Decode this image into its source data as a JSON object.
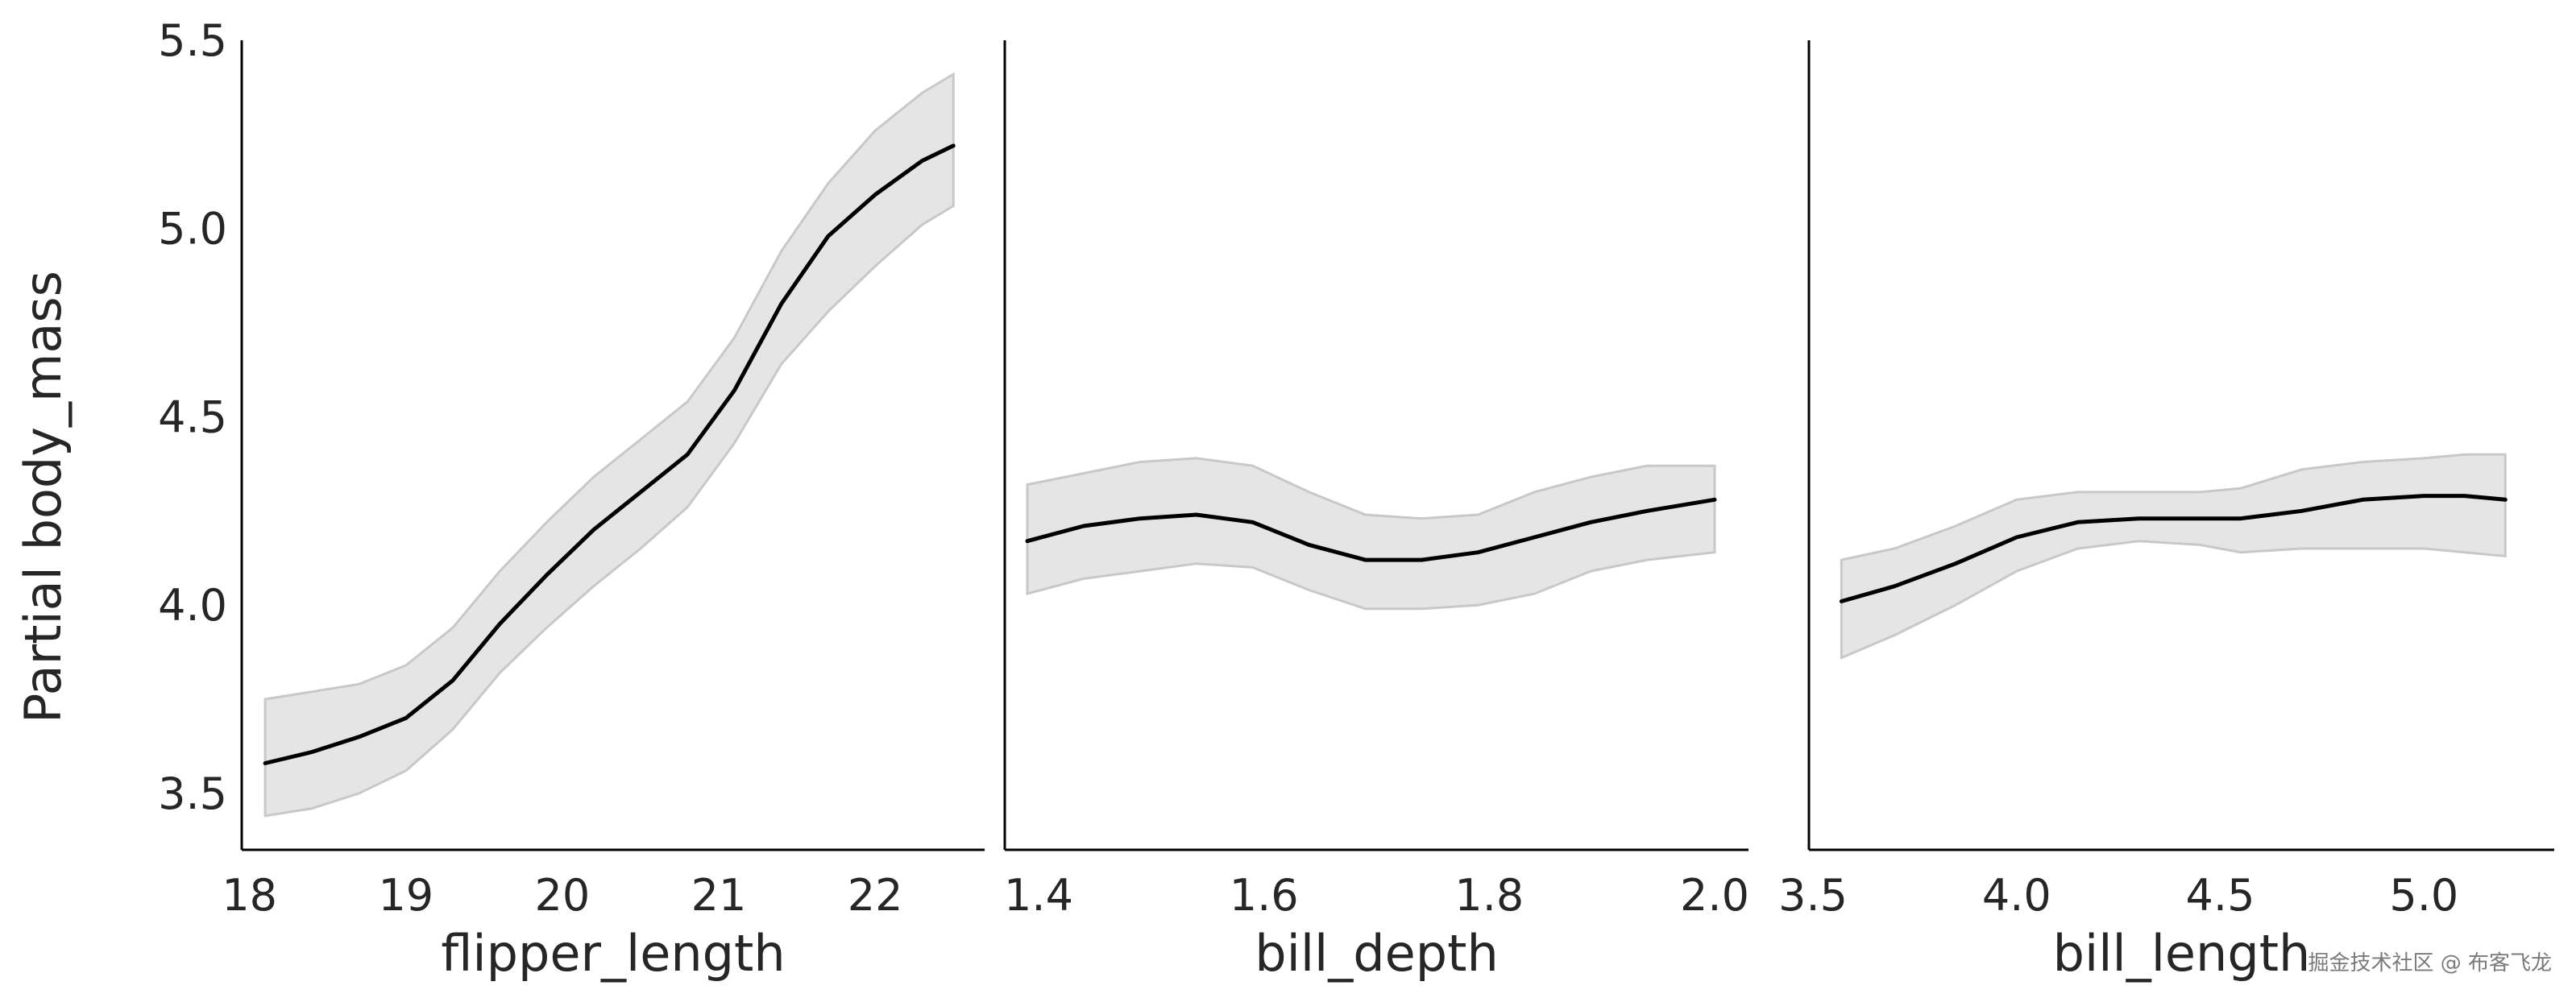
{
  "watermark": "掘金技术社区 @ 布客飞龙",
  "chart_data": {
    "type": "line",
    "ylabel": "Partial body_mass",
    "ylim": [
      3.35,
      5.5
    ],
    "yticks": [
      3.5,
      4.0,
      4.5,
      5.0,
      5.5
    ],
    "yticklabels": [
      "3.5",
      "4.0",
      "4.5",
      "5.0",
      "5.5"
    ],
    "line_color": "#000000",
    "band_color": "#e5e5e5",
    "band_edge_color": "#c8c8c8",
    "grid": false,
    "panels": [
      {
        "xlabel": "flipper_length",
        "xlim": [
          17.95,
          22.7
        ],
        "xticks": [
          18,
          19,
          20,
          21,
          22
        ],
        "xticklabels": [
          "18",
          "19",
          "20",
          "21",
          "22"
        ],
        "x": [
          18.1,
          18.4,
          18.7,
          19.0,
          19.3,
          19.6,
          19.9,
          20.2,
          20.5,
          20.8,
          21.1,
          21.4,
          21.7,
          22.0,
          22.3,
          22.5
        ],
        "mean": [
          3.58,
          3.61,
          3.65,
          3.7,
          3.8,
          3.95,
          4.08,
          4.2,
          4.3,
          4.4,
          4.57,
          4.8,
          4.98,
          5.09,
          5.18,
          5.22
        ],
        "lower": [
          3.44,
          3.46,
          3.5,
          3.56,
          3.67,
          3.82,
          3.94,
          4.05,
          4.15,
          4.26,
          4.43,
          4.64,
          4.78,
          4.9,
          5.01,
          5.06
        ],
        "upper": [
          3.75,
          3.77,
          3.79,
          3.84,
          3.94,
          4.09,
          4.22,
          4.34,
          4.44,
          4.54,
          4.71,
          4.94,
          5.12,
          5.26,
          5.36,
          5.41
        ]
      },
      {
        "xlabel": "bill_depth",
        "xlim": [
          1.37,
          2.03
        ],
        "xticks": [
          1.4,
          1.6,
          1.8,
          2.0
        ],
        "xticklabels": [
          "1.4",
          "1.6",
          "1.8",
          "2.0"
        ],
        "x": [
          1.39,
          1.44,
          1.49,
          1.54,
          1.59,
          1.64,
          1.69,
          1.74,
          1.79,
          1.84,
          1.89,
          1.94,
          2.0
        ],
        "mean": [
          4.17,
          4.21,
          4.23,
          4.24,
          4.22,
          4.16,
          4.12,
          4.12,
          4.14,
          4.18,
          4.22,
          4.25,
          4.28
        ],
        "lower": [
          4.03,
          4.07,
          4.09,
          4.11,
          4.1,
          4.04,
          3.99,
          3.99,
          4.0,
          4.03,
          4.09,
          4.12,
          4.14
        ],
        "upper": [
          4.32,
          4.35,
          4.38,
          4.39,
          4.37,
          4.3,
          4.24,
          4.23,
          4.24,
          4.3,
          4.34,
          4.37,
          4.37
        ]
      },
      {
        "xlabel": "bill_length",
        "xlim": [
          3.49,
          5.32
        ],
        "xticks": [
          3.5,
          4.0,
          4.5,
          5.0
        ],
        "xticklabels": [
          "3.5",
          "4.0",
          "4.5",
          "5.0"
        ],
        "x": [
          3.57,
          3.7,
          3.85,
          4.0,
          4.15,
          4.3,
          4.45,
          4.55,
          4.7,
          4.85,
          5.0,
          5.1,
          5.2
        ],
        "mean": [
          4.01,
          4.05,
          4.11,
          4.18,
          4.22,
          4.23,
          4.23,
          4.23,
          4.25,
          4.28,
          4.29,
          4.29,
          4.28
        ],
        "lower": [
          3.86,
          3.92,
          4.0,
          4.09,
          4.15,
          4.17,
          4.16,
          4.14,
          4.15,
          4.15,
          4.15,
          4.14,
          4.13
        ],
        "upper": [
          4.12,
          4.15,
          4.21,
          4.28,
          4.3,
          4.3,
          4.3,
          4.31,
          4.36,
          4.38,
          4.39,
          4.4,
          4.4
        ]
      }
    ]
  }
}
